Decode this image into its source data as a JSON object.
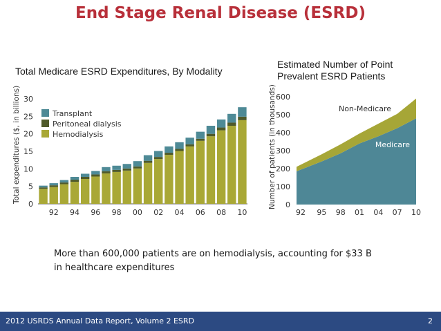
{
  "slide": {
    "title": "End Stage Renal Disease (ESRD)",
    "caption_line1": "More than 600,000 patients are on hemodialysis, accounting for $33 B",
    "caption_line2": "in healthcare expenditures",
    "footer": "2012 USRDS Annual Data Report, Volume 2 ESRD",
    "page_number": "2"
  },
  "colors": {
    "transplant": "#4e8a96",
    "peritoneal": "#4f5a2a",
    "hemodialysis": "#a9a836",
    "non_medicare": "#a6a637",
    "medicare": "#4e8796",
    "axis": "#555555",
    "title": "#b8303a",
    "footer_bg": "#2c4a82"
  },
  "chart_data": [
    {
      "type": "bar",
      "stacked": true,
      "title": "Total Medicare ESRD Expenditures, By Modality",
      "xlabel": "",
      "ylabel": "Total expenditures ($, in billions)",
      "ylim": [
        0,
        30
      ],
      "yticks": [
        "0",
        "5",
        "10",
        "15",
        "20",
        "25",
        "30"
      ],
      "years": [
        "91",
        "92",
        "93",
        "94",
        "95",
        "96",
        "97",
        "98",
        "99",
        "00",
        "01",
        "02",
        "03",
        "04",
        "05",
        "06",
        "07",
        "08",
        "09",
        "10"
      ],
      "xtick_labels": [
        "92",
        "94",
        "96",
        "98",
        "00",
        "02",
        "04",
        "06",
        "08",
        "10"
      ],
      "legend": [
        "Transplant",
        "Peritoneal dialysis",
        "Hemodialysis"
      ],
      "series": [
        {
          "name": "Hemodialysis",
          "values": [
            4.3,
            4.8,
            5.6,
            6.3,
            7.1,
            7.8,
            8.7,
            9.1,
            9.5,
            10.1,
            11.7,
            12.8,
            14.0,
            15.1,
            16.4,
            18.0,
            19.3,
            21.0,
            22.3,
            23.9
          ]
        },
        {
          "name": "Peritoneal dialysis",
          "values": [
            0.4,
            0.5,
            0.5,
            0.6,
            0.6,
            0.6,
            0.6,
            0.6,
            0.6,
            0.6,
            0.6,
            0.6,
            0.6,
            0.6,
            0.6,
            0.6,
            0.7,
            0.8,
            0.9,
            1.0
          ]
        },
        {
          "name": "Transplant",
          "values": [
            0.5,
            0.6,
            0.7,
            0.8,
            0.9,
            1.0,
            1.2,
            1.2,
            1.3,
            1.5,
            1.6,
            1.7,
            1.8,
            1.9,
            1.9,
            2.0,
            2.3,
            2.3,
            2.5,
            2.7
          ]
        }
      ]
    },
    {
      "type": "area",
      "stacked": true,
      "title": "Estimated Number of Point Prevalent ESRD Patients",
      "xlabel": "",
      "ylabel": "Number of patients (in thousands)",
      "ylim": [
        0,
        600
      ],
      "yticks": [
        "0",
        "100",
        "200",
        "300",
        "400",
        "500",
        "600"
      ],
      "x": [
        1991,
        1995,
        1998,
        2001,
        2004,
        2007,
        2010
      ],
      "xtick_labels": [
        "92",
        "95",
        "98",
        "01",
        "04",
        "07",
        "10"
      ],
      "xrange": [
        1991,
        2010
      ],
      "series": [
        {
          "name": "Medicare",
          "values": [
            185,
            240,
            285,
            340,
            380,
            425,
            480
          ]
        },
        {
          "name": "Non-Medicare",
          "values": [
            25,
            40,
            50,
            55,
            70,
            80,
            110
          ]
        }
      ]
    }
  ]
}
